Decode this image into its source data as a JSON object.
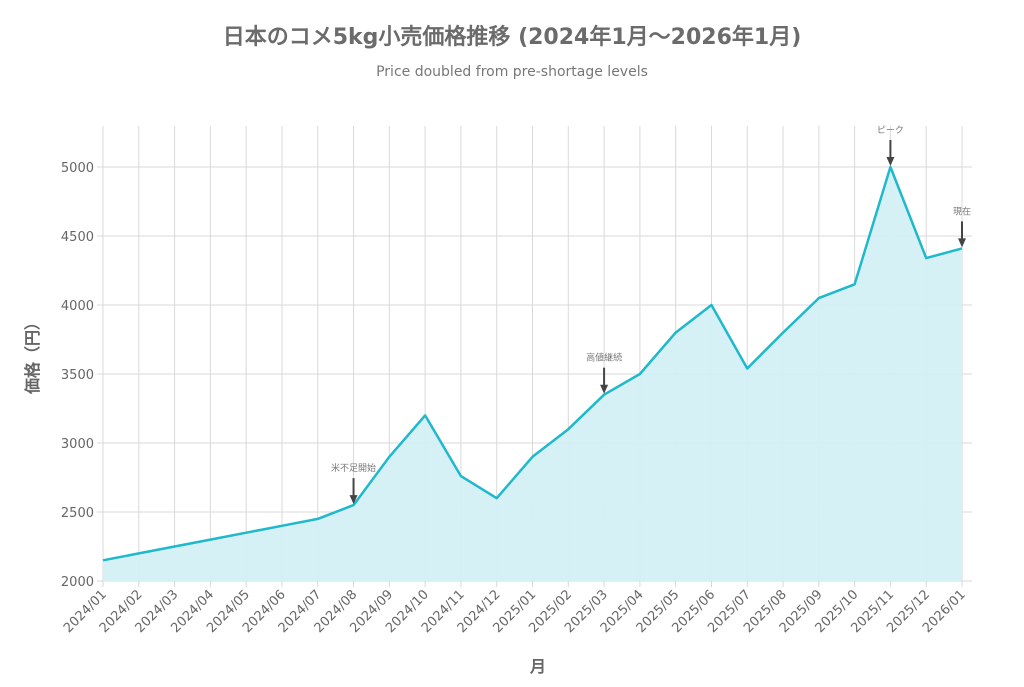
{
  "chart_data": {
    "type": "area",
    "title": "日本のコメ5kg小売価格推移 (2024年1月〜2026年1月)",
    "subtitle": "Price doubled from pre-shortage levels",
    "xlabel": "月",
    "ylabel": "価格（円）",
    "ylim": [
      2000,
      5300
    ],
    "yticks": [
      2000,
      2500,
      3000,
      3500,
      4000,
      4500,
      5000
    ],
    "grid": true,
    "categories": [
      "2024/01",
      "2024/02",
      "2024/03",
      "2024/04",
      "2024/05",
      "2024/06",
      "2024/07",
      "2024/08",
      "2024/09",
      "2024/10",
      "2024/11",
      "2024/12",
      "2025/01",
      "2025/02",
      "2025/03",
      "2025/04",
      "2025/05",
      "2025/06",
      "2025/07",
      "2025/08",
      "2025/09",
      "2025/10",
      "2025/11",
      "2025/12",
      "2026/01"
    ],
    "values": [
      2150,
      2200,
      2250,
      2300,
      2350,
      2400,
      2450,
      2550,
      2900,
      3200,
      2760,
      2600,
      2900,
      3100,
      3350,
      3500,
      3800,
      4000,
      3540,
      3800,
      4050,
      4150,
      5000,
      4340,
      4410
    ],
    "line_color": "#1fb8cd",
    "fill_color": "#d3f0f4",
    "annotations": [
      {
        "category": "2024/08",
        "text": "米不足開始"
      },
      {
        "category": "2025/03",
        "text": "高値継続"
      },
      {
        "category": "2025/11",
        "text": "ピーク"
      },
      {
        "category": "2026/01",
        "text": "現在"
      }
    ]
  }
}
